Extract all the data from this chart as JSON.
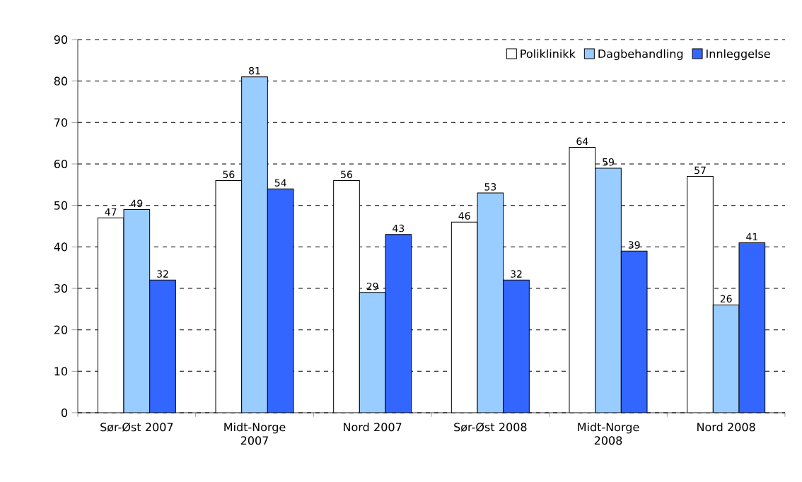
{
  "chart_data": {
    "type": "bar",
    "categories": [
      "Sør-Øst 2007",
      "Midt-Norge 2007",
      "Nord 2007",
      "Sør-Øst 2008",
      "Midt-Norge 2008",
      "Nord 2008"
    ],
    "series": [
      {
        "name": "Poliklinikk",
        "color": "#ffffff",
        "values": [
          47,
          56,
          56,
          46,
          64,
          57
        ]
      },
      {
        "name": "Dagbehandling",
        "color": "#99ccff",
        "values": [
          49,
          81,
          29,
          53,
          59,
          26
        ]
      },
      {
        "name": "Innleggelse",
        "color": "#3366ff",
        "values": [
          32,
          54,
          43,
          32,
          39,
          41
        ]
      }
    ],
    "ylim": [
      0,
      90
    ],
    "yticks": [
      0,
      10,
      20,
      30,
      40,
      50,
      60,
      70,
      80,
      90
    ],
    "grid": "y",
    "legend": "top right",
    "data_labels": true
  }
}
